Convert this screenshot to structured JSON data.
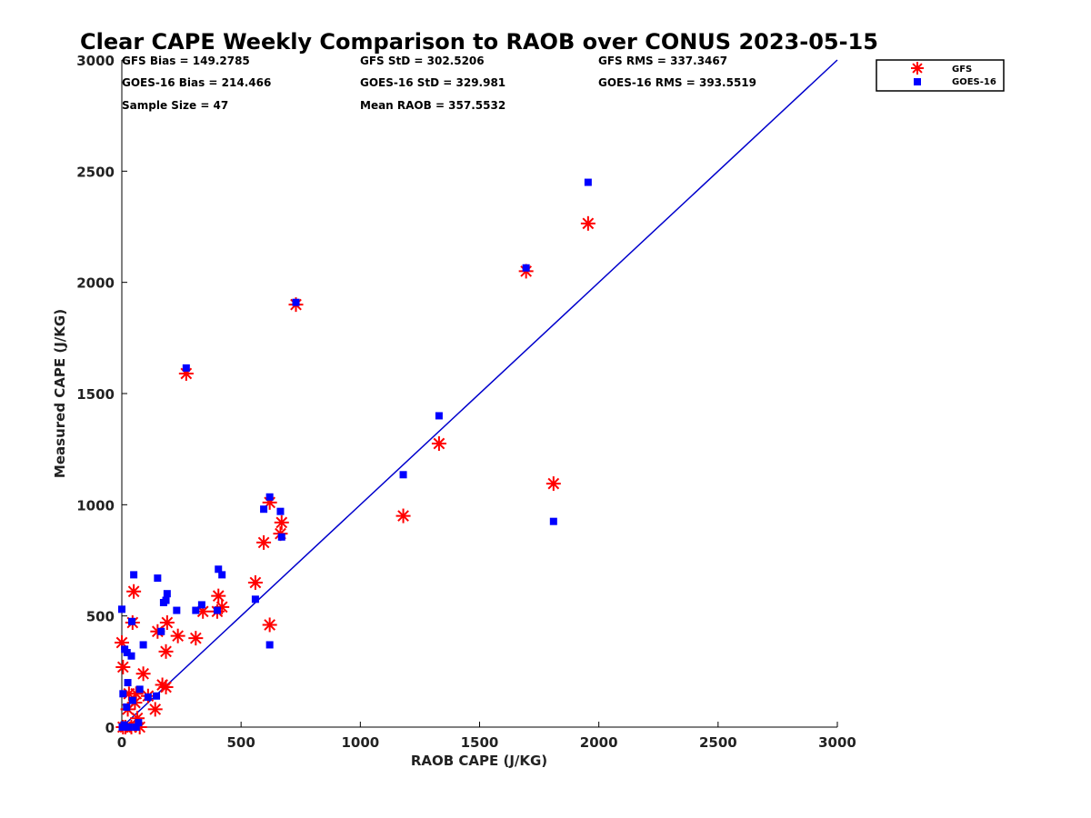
{
  "colors": {
    "gfs": "#ff0000",
    "goes": "#0000ff",
    "line": "#0000cc",
    "axis": "#000000"
  },
  "stats": {
    "gfs_bias": "GFS Bias = 149.2785",
    "gfs_std": "GFS StD = 302.5206",
    "gfs_rms": "GFS RMS = 337.3467",
    "goes_bias": "GOES-16 Bias = 214.466",
    "goes_std": "GOES-16 StD = 329.981",
    "goes_rms": "GOES-16 RMS = 393.5519",
    "sample_size": "Sample Size = 47",
    "mean_raob": "Mean RAOB = 357.5532"
  },
  "chart_data": {
    "type": "scatter",
    "title": "Clear CAPE Weekly Comparison to RAOB over CONUS 2023-05-15",
    "xlabel": "RAOB CAPE (J/KG)",
    "ylabel": "Measured CAPE (J/KG)",
    "xlim": [
      0,
      3000
    ],
    "ylim": [
      0,
      3000
    ],
    "xticks": [
      "0",
      "500",
      "1000",
      "1500",
      "2000",
      "2500",
      "3000"
    ],
    "yticks": [
      "0",
      "500",
      "1000",
      "1500",
      "2000",
      "2500",
      "3000"
    ],
    "grid": false,
    "legend_position": "top-right",
    "reference_line": [
      [
        0,
        0
      ],
      [
        3000,
        3000
      ]
    ],
    "series": [
      {
        "name": "GFS",
        "marker": "asterisk",
        "points": [
          [
            0,
            380
          ],
          [
            5,
            270
          ],
          [
            5,
            0
          ],
          [
            15,
            0
          ],
          [
            25,
            80
          ],
          [
            30,
            150
          ],
          [
            40,
            0
          ],
          [
            45,
            470
          ],
          [
            50,
            610
          ],
          [
            55,
            110
          ],
          [
            60,
            150
          ],
          [
            65,
            40
          ],
          [
            75,
            0
          ],
          [
            90,
            240
          ],
          [
            110,
            140
          ],
          [
            140,
            80
          ],
          [
            150,
            430
          ],
          [
            170,
            190
          ],
          [
            185,
            180
          ],
          [
            185,
            340
          ],
          [
            190,
            470
          ],
          [
            235,
            410
          ],
          [
            270,
            1590
          ],
          [
            310,
            400
          ],
          [
            340,
            520
          ],
          [
            400,
            520
          ],
          [
            405,
            590
          ],
          [
            420,
            540
          ],
          [
            560,
            650
          ],
          [
            595,
            830
          ],
          [
            620,
            1010
          ],
          [
            620,
            460
          ],
          [
            665,
            870
          ],
          [
            670,
            920
          ],
          [
            730,
            1900
          ],
          [
            1180,
            950
          ],
          [
            1330,
            1275
          ],
          [
            1695,
            2050
          ],
          [
            1810,
            1095
          ],
          [
            1955,
            2265
          ]
        ]
      },
      {
        "name": "GOES-16",
        "marker": "square",
        "points": [
          [
            0,
            530
          ],
          [
            2,
            0
          ],
          [
            5,
            150
          ],
          [
            10,
            10
          ],
          [
            12,
            350
          ],
          [
            15,
            0
          ],
          [
            20,
            90
          ],
          [
            22,
            335
          ],
          [
            25,
            200
          ],
          [
            30,
            0
          ],
          [
            40,
            320
          ],
          [
            42,
            475
          ],
          [
            45,
            120
          ],
          [
            50,
            685
          ],
          [
            60,
            0
          ],
          [
            70,
            20
          ],
          [
            75,
            170
          ],
          [
            90,
            370
          ],
          [
            110,
            135
          ],
          [
            145,
            140
          ],
          [
            150,
            670
          ],
          [
            165,
            430
          ],
          [
            175,
            560
          ],
          [
            185,
            570
          ],
          [
            190,
            600
          ],
          [
            230,
            525
          ],
          [
            270,
            1615
          ],
          [
            310,
            525
          ],
          [
            335,
            550
          ],
          [
            400,
            525
          ],
          [
            405,
            710
          ],
          [
            420,
            685
          ],
          [
            560,
            575
          ],
          [
            595,
            980
          ],
          [
            620,
            1035
          ],
          [
            620,
            370
          ],
          [
            665,
            970
          ],
          [
            670,
            855
          ],
          [
            730,
            1910
          ],
          [
            1180,
            1135
          ],
          [
            1330,
            1400
          ],
          [
            1695,
            2065
          ],
          [
            1810,
            925
          ],
          [
            1955,
            2450
          ]
        ]
      }
    ]
  }
}
